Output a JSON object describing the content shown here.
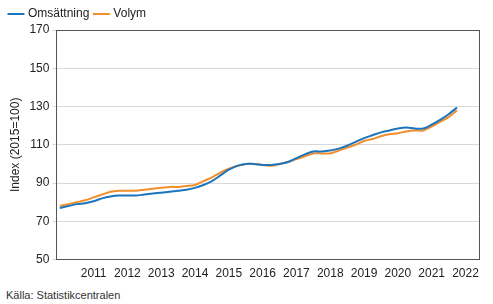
{
  "chart_data": {
    "type": "line",
    "y_label": "Index (2015=100)",
    "source": "Källa: Statistikcentralen",
    "legend": "upper left",
    "grid": true,
    "x": [
      2010.0,
      2010.25,
      2010.5,
      2010.75,
      2011.0,
      2011.25,
      2011.5,
      2011.75,
      2012.0,
      2012.25,
      2012.5,
      2012.75,
      2013.0,
      2013.25,
      2013.5,
      2013.75,
      2014.0,
      2014.25,
      2014.5,
      2014.75,
      2015.0,
      2015.25,
      2015.5,
      2015.75,
      2016.0,
      2016.25,
      2016.5,
      2016.75,
      2017.0,
      2017.25,
      2017.5,
      2017.75,
      2018.0,
      2018.25,
      2018.5,
      2018.75,
      2019.0,
      2019.25,
      2019.5,
      2019.75,
      2020.0,
      2020.25,
      2020.5,
      2020.75,
      2021.0,
      2021.25,
      2021.5,
      2021.75
    ],
    "series": [
      {
        "name": "Omsättning",
        "color": "#1c75bc",
        "values": [
          77,
          78,
          79,
          79.5,
          80.5,
          82,
          83,
          83.5,
          83.5,
          83.5,
          84,
          84.5,
          85,
          85.5,
          86,
          86.5,
          87.5,
          89,
          91,
          94,
          97,
          99,
          100,
          100,
          99.5,
          99.5,
          100,
          101,
          103,
          105,
          106.5,
          106.5,
          107,
          108,
          109.5,
          111.5,
          113.5,
          115,
          116.5,
          117.5,
          118.5,
          119,
          118.5,
          118.5,
          120.5,
          123,
          126,
          129.5
        ]
      },
      {
        "name": "Volym",
        "color": "#f28e2b",
        "values": [
          78,
          79,
          80,
          81,
          82.5,
          84,
          85.5,
          86,
          86,
          86,
          86.5,
          87,
          87.5,
          88,
          88,
          88.5,
          89,
          91,
          93,
          95.5,
          97.5,
          99,
          100,
          100,
          99.5,
          99,
          100,
          101,
          102.5,
          104,
          105.5,
          105.5,
          105.5,
          107,
          108.5,
          110,
          112,
          113,
          114.5,
          115.5,
          116,
          117,
          117.5,
          117.5,
          119.5,
          122,
          124.5,
          128
        ]
      }
    ],
    "xlim": [
      2009.9,
      2022.4
    ],
    "xticks": [
      2011,
      2012,
      2013,
      2014,
      2015,
      2016,
      2017,
      2018,
      2019,
      2020,
      2021,
      2022
    ],
    "ylim": [
      50,
      170
    ],
    "yticks": [
      50,
      70,
      90,
      110,
      130,
      150,
      170
    ]
  }
}
